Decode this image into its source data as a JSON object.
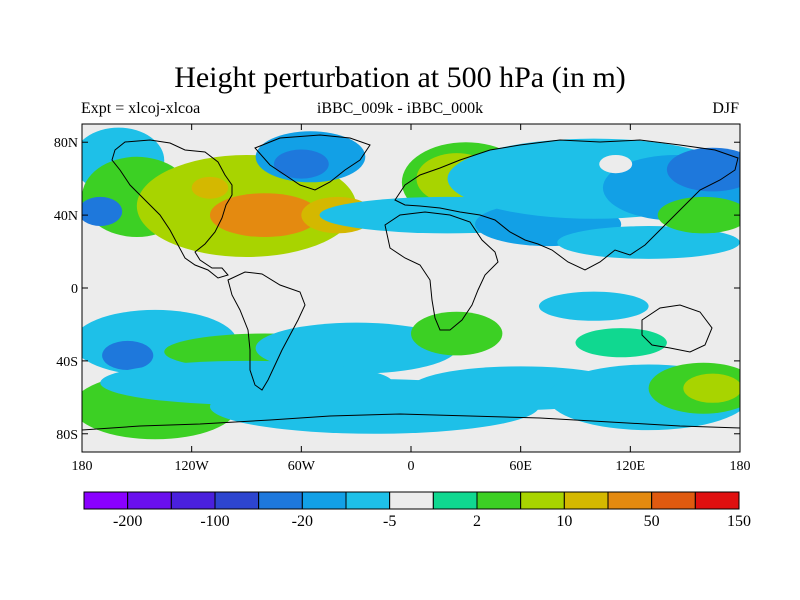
{
  "title": "Height perturbation at 500 hPa (in m)",
  "subtitle_left": "Expt = xlcoj-xlcoa",
  "subtitle_center": "iBBC_009k - iBBC_000k",
  "subtitle_right": "DJF",
  "lat_ticks": [
    {
      "value": 80,
      "label": "80N"
    },
    {
      "value": 40,
      "label": "40N"
    },
    {
      "value": 0,
      "label": "0"
    },
    {
      "value": -40,
      "label": "40S"
    },
    {
      "value": -80,
      "label": "80S"
    }
  ],
  "lon_ticks": [
    {
      "value": -180,
      "label": "180"
    },
    {
      "value": -120,
      "label": "120W"
    },
    {
      "value": -60,
      "label": "60W"
    },
    {
      "value": 0,
      "label": "0"
    },
    {
      "value": 60,
      "label": "60E"
    },
    {
      "value": 120,
      "label": "120E"
    },
    {
      "value": 180,
      "label": "180"
    }
  ],
  "colorbar": {
    "colors": [
      "#8a00ff",
      "#6a10ee",
      "#4a20dd",
      "#2d45d0",
      "#1e78dc",
      "#12a0e6",
      "#1ec0e8",
      "#ececec",
      "#10d890",
      "#3cd024",
      "#a8d400",
      "#d4b800",
      "#e48a10",
      "#e05a10",
      "#e01010"
    ],
    "labels": [
      {
        "value": "-200",
        "after_box": 1
      },
      {
        "value": "-100",
        "after_box": 3
      },
      {
        "value": "-20",
        "after_box": 5
      },
      {
        "value": "-5",
        "after_box": 7
      },
      {
        "value": "2",
        "after_box": 9
      },
      {
        "value": "10",
        "after_box": 11
      },
      {
        "value": "50",
        "after_box": 13
      },
      {
        "value": "150",
        "after_box": 15
      }
    ]
  },
  "field_blobs": [
    {
      "lon": -160,
      "lat": 70,
      "rx": 25,
      "ry": 18,
      "level": 6
    },
    {
      "lon": -150,
      "lat": 50,
      "rx": 30,
      "ry": 22,
      "level": 9
    },
    {
      "lon": -90,
      "lat": 45,
      "rx": 60,
      "ry": 28,
      "level": 10
    },
    {
      "lon": -80,
      "lat": 40,
      "rx": 30,
      "ry": 12,
      "level": 12
    },
    {
      "lon": -40,
      "lat": 40,
      "rx": 20,
      "ry": 10,
      "level": 11
    },
    {
      "lon": -110,
      "lat": 55,
      "rx": 10,
      "ry": 6,
      "level": 11
    },
    {
      "lon": -55,
      "lat": 72,
      "rx": 30,
      "ry": 14,
      "level": 5
    },
    {
      "lon": -60,
      "lat": 68,
      "rx": 15,
      "ry": 8,
      "level": 4
    },
    {
      "lon": -170,
      "lat": 42,
      "rx": 12,
      "ry": 8,
      "level": 4
    },
    {
      "lon": 30,
      "lat": 58,
      "rx": 35,
      "ry": 22,
      "level": 9
    },
    {
      "lon": 25,
      "lat": 60,
      "rx": 22,
      "ry": 14,
      "level": 10
    },
    {
      "lon": 20,
      "lat": 40,
      "rx": 70,
      "ry": 10,
      "level": 6
    },
    {
      "lon": 75,
      "lat": 35,
      "rx": 40,
      "ry": 12,
      "level": 5
    },
    {
      "lon": 100,
      "lat": 60,
      "rx": 80,
      "ry": 22,
      "level": 6
    },
    {
      "lon": 145,
      "lat": 55,
      "rx": 40,
      "ry": 18,
      "level": 5
    },
    {
      "lon": 165,
      "lat": 65,
      "rx": 25,
      "ry": 12,
      "level": 4
    },
    {
      "lon": 112,
      "lat": 68,
      "rx": 9,
      "ry": 5,
      "level": 7
    },
    {
      "lon": 130,
      "lat": 25,
      "rx": 50,
      "ry": 9,
      "level": 6
    },
    {
      "lon": 160,
      "lat": 40,
      "rx": 25,
      "ry": 10,
      "level": 9
    },
    {
      "lon": -140,
      "lat": -30,
      "rx": 45,
      "ry": 18,
      "level": 6
    },
    {
      "lon": -155,
      "lat": -37,
      "rx": 14,
      "ry": 8,
      "level": 4
    },
    {
      "lon": -80,
      "lat": -35,
      "rx": 55,
      "ry": 10,
      "level": 9
    },
    {
      "lon": -30,
      "lat": -33,
      "rx": 55,
      "ry": 14,
      "level": 6
    },
    {
      "lon": 25,
      "lat": -25,
      "rx": 25,
      "ry": 12,
      "level": 9
    },
    {
      "lon": -140,
      "lat": -65,
      "rx": 45,
      "ry": 18,
      "level": 9
    },
    {
      "lon": -90,
      "lat": -52,
      "rx": 80,
      "ry": 12,
      "level": 6
    },
    {
      "lon": -20,
      "lat": -65,
      "rx": 90,
      "ry": 15,
      "level": 6
    },
    {
      "lon": 60,
      "lat": -55,
      "rx": 60,
      "ry": 12,
      "level": 6
    },
    {
      "lon": 130,
      "lat": -60,
      "rx": 55,
      "ry": 18,
      "level": 6
    },
    {
      "lon": 160,
      "lat": -55,
      "rx": 30,
      "ry": 14,
      "level": 9
    },
    {
      "lon": 165,
      "lat": -55,
      "rx": 16,
      "ry": 8,
      "level": 10
    },
    {
      "lon": 100,
      "lat": -10,
      "rx": 30,
      "ry": 8,
      "level": 6
    },
    {
      "lon": 115,
      "lat": -30,
      "rx": 25,
      "ry": 8,
      "level": 8
    }
  ]
}
